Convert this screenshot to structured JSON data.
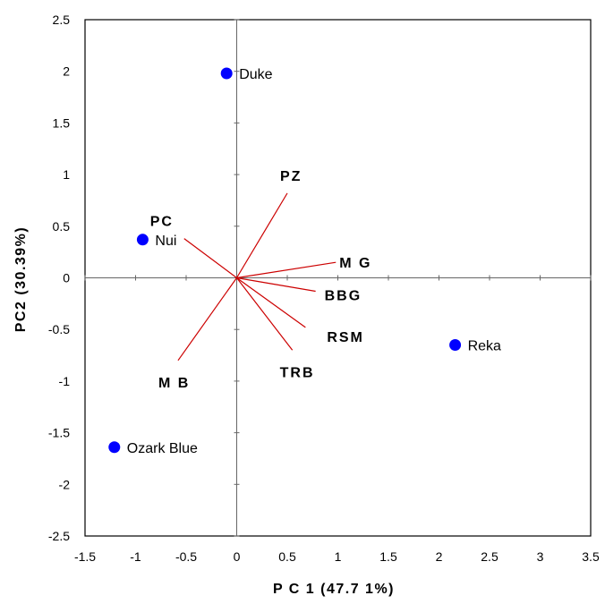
{
  "chart_data": {
    "type": "scatter",
    "title": "",
    "xlabel": "P C 1 (47.7 1%)",
    "ylabel": "PC2 (30.39%)",
    "xlim": [
      -1.5,
      3.5
    ],
    "ylim": [
      -2.5,
      2.5
    ],
    "xticks": [
      "-1.5",
      "-1",
      "-0.5",
      "0",
      "0.5",
      "1",
      "1.5",
      "2",
      "2.5",
      "3",
      "3.5"
    ],
    "yticks": [
      "2.5",
      "2",
      "1.5",
      "1",
      "0.5",
      "0",
      "-0.5",
      "-1",
      "-1.5",
      "-2",
      "-2.5"
    ],
    "grid": false,
    "marker_color": "#0000ff",
    "vector_color": "#cc0000",
    "points": [
      {
        "label": "Duke",
        "x": -0.1,
        "y": 1.98
      },
      {
        "label": "Nui",
        "x": -0.93,
        "y": 0.37
      },
      {
        "label": "Reka",
        "x": 2.16,
        "y": -0.65
      },
      {
        "label": "Ozark Blue",
        "x": -1.21,
        "y": -1.64
      }
    ],
    "vectors": [
      {
        "label": "PZ",
        "x": 0.5,
        "y": 0.82
      },
      {
        "label": "PC",
        "x": -0.52,
        "y": 0.38
      },
      {
        "label": "M G",
        "x": 0.98,
        "y": 0.15
      },
      {
        "label": "BBG",
        "x": 0.78,
        "y": -0.13
      },
      {
        "label": "RSM",
        "x": 0.68,
        "y": -0.48
      },
      {
        "label": "TRB",
        "x": 0.55,
        "y": -0.7
      },
      {
        "label": "M B",
        "x": -0.58,
        "y": -0.8
      }
    ]
  }
}
